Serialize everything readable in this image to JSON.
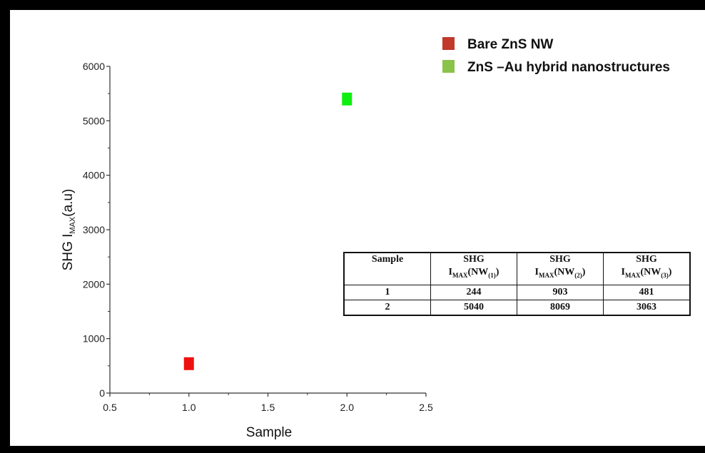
{
  "chart_data": {
    "type": "scatter",
    "xlabel": "Sample",
    "ylabel_main": "SHG I",
    "ylabel_sub": "MAX",
    "ylabel_suffix": "(a.u)",
    "xlim": [
      0.5,
      2.5
    ],
    "ylim": [
      0,
      6000
    ],
    "x_ticks": [
      "0.5",
      "1.0",
      "1.5",
      "2.0",
      "2.5"
    ],
    "y_ticks": [
      "0",
      "1000",
      "2000",
      "3000",
      "4000",
      "5000",
      "6000"
    ],
    "grid": false,
    "legend_position": "top-right",
    "series": [
      {
        "name": "Bare ZnS NW",
        "color": "#ee1111",
        "legend_color": "#c0392b",
        "x": [
          1.0
        ],
        "y": [
          540
        ]
      },
      {
        "name": "ZnS –Au hybrid nanostructures",
        "color": "#11ee11",
        "legend_color": "#8bc34a",
        "x": [
          2.0
        ],
        "y": [
          5400
        ]
      }
    ]
  },
  "table": {
    "header": [
      {
        "line1": "Sample",
        "main": "",
        "sub": "",
        "suffix": ""
      },
      {
        "line1": "SHG",
        "main": "I",
        "sub": "MAX",
        "mid": "(NW",
        "sub2": "(1)",
        "suffix": ")"
      },
      {
        "line1": "SHG",
        "main": "I",
        "sub": "MAX",
        "mid": "(NW",
        "sub2": "(2)",
        "suffix": ")"
      },
      {
        "line1": "SHG",
        "main": "I",
        "sub": "MAX",
        "mid": "(NW",
        "sub2": "(3)",
        "suffix": ")"
      }
    ],
    "rows": [
      [
        "1",
        "244",
        "903",
        "481"
      ],
      [
        "2",
        "5040",
        "8069",
        "3063"
      ]
    ]
  }
}
